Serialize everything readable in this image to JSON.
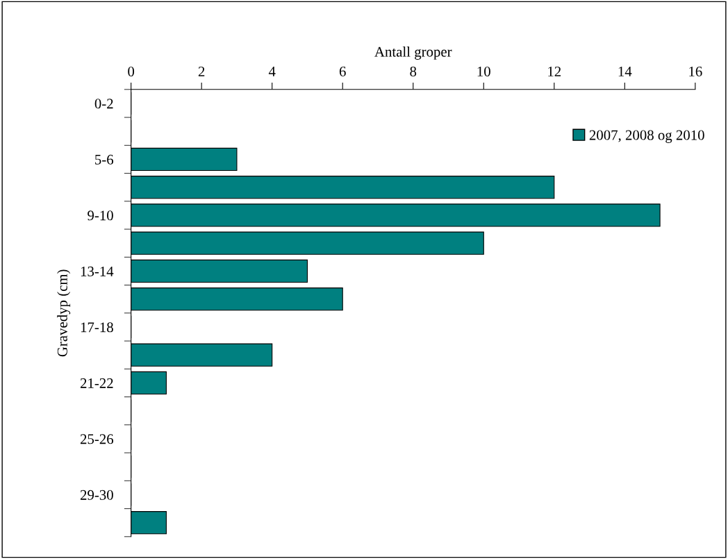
{
  "chart_data": {
    "type": "bar",
    "orientation": "horizontal",
    "xlabel": "Antall groper",
    "ylabel": "Gravedyp (cm)",
    "categories": [
      "0-2",
      null,
      "5-6",
      null,
      "9-10",
      null,
      "13-14",
      null,
      "17-18",
      null,
      "21-22",
      null,
      "25-26",
      null,
      "29-30",
      null
    ],
    "series": [
      {
        "name": "2007, 2008 og 2010",
        "color": "#008080",
        "values": [
          0,
          0,
          3,
          12,
          15,
          10,
          5,
          6,
          0,
          4,
          1,
          0,
          0,
          0,
          0,
          1
        ]
      }
    ],
    "xlim": [
      0,
      16
    ],
    "xticks": [
      0,
      2,
      4,
      6,
      8,
      10,
      12,
      14,
      16
    ],
    "grid": false,
    "legend": "top right"
  }
}
